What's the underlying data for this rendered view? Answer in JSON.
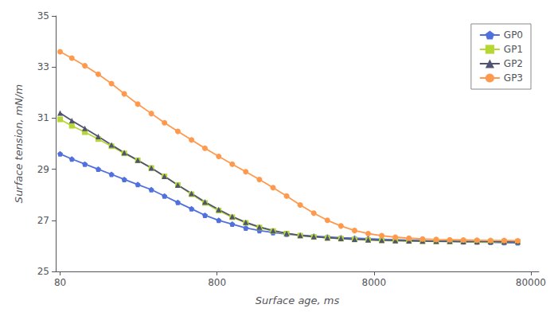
{
  "chart_data": {
    "type": "line",
    "xlabel": "Surface age, ms",
    "ylabel": "Surface tension, mN/m",
    "log": "x",
    "xlim": [
      75,
      90000
    ],
    "xticks": [
      80,
      800,
      8000,
      80000
    ],
    "ylim": [
      25,
      35
    ],
    "yticks": [
      25,
      27,
      29,
      31,
      33,
      35
    ],
    "grid": false,
    "legend": "upper right",
    "x": [
      80,
      95,
      115,
      140,
      170,
      205,
      250,
      305,
      370,
      450,
      550,
      670,
      820,
      1000,
      1220,
      1490,
      1820,
      2220,
      2710,
      3310,
      4040,
      4930,
      6020,
      7350,
      8970,
      10950,
      13370,
      16330,
      19940,
      24340,
      29720,
      36280,
      44280,
      54060,
      66000
    ],
    "series": [
      {
        "name": "GP0",
        "marker": "pentagon",
        "values": [
          29.6,
          29.4,
          29.2,
          29.0,
          28.8,
          28.6,
          28.4,
          28.2,
          27.95,
          27.7,
          27.45,
          27.2,
          27.0,
          26.85,
          26.7,
          26.6,
          26.52,
          26.46,
          26.42,
          26.38,
          26.35,
          26.32,
          26.3,
          26.28,
          26.26,
          26.24,
          26.22,
          26.2,
          26.18,
          26.17,
          26.16,
          26.15,
          26.14,
          26.13,
          26.12
        ]
      },
      {
        "name": "GP1",
        "marker": "square",
        "values": [
          30.95,
          30.7,
          30.45,
          30.18,
          29.9,
          29.62,
          29.35,
          29.05,
          28.72,
          28.38,
          28.02,
          27.68,
          27.38,
          27.12,
          26.9,
          26.72,
          26.58,
          26.48,
          26.4,
          26.35,
          26.31,
          26.28,
          26.25,
          26.23,
          26.21,
          26.2,
          26.19,
          26.18,
          26.17,
          26.17,
          26.17,
          26.16,
          26.16,
          26.16,
          26.16
        ]
      },
      {
        "name": "GP2",
        "marker": "triangle",
        "values": [
          31.2,
          30.9,
          30.6,
          30.28,
          29.95,
          29.65,
          29.35,
          29.05,
          28.72,
          28.38,
          28.05,
          27.72,
          27.42,
          27.15,
          26.92,
          26.74,
          26.6,
          26.49,
          26.41,
          26.36,
          26.32,
          26.29,
          26.26,
          26.24,
          26.22,
          26.21,
          26.2,
          26.19,
          26.18,
          26.18,
          26.17,
          26.17,
          26.17,
          26.16,
          26.16
        ]
      },
      {
        "name": "GP3",
        "marker": "circle",
        "values": [
          33.6,
          33.35,
          33.05,
          32.72,
          32.35,
          31.95,
          31.55,
          31.18,
          30.82,
          30.48,
          30.15,
          29.82,
          29.5,
          29.2,
          28.9,
          28.6,
          28.28,
          27.95,
          27.6,
          27.28,
          27.0,
          26.78,
          26.6,
          26.48,
          26.4,
          26.34,
          26.3,
          26.27,
          26.25,
          26.24,
          26.23,
          26.22,
          26.21,
          26.21,
          26.2
        ]
      }
    ]
  }
}
